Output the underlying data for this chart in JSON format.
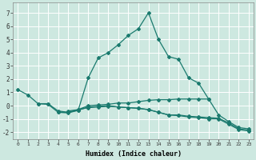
{
  "xlabel": "Humidex (Indice chaleur)",
  "background_color": "#cde8e0",
  "grid_color": "#ffffff",
  "line_color": "#1a7a6e",
  "xlim": [
    -0.5,
    23.5
  ],
  "ylim": [
    -2.5,
    7.8
  ],
  "xticks": [
    0,
    1,
    2,
    3,
    4,
    5,
    6,
    7,
    8,
    9,
    10,
    11,
    12,
    13,
    14,
    15,
    16,
    17,
    18,
    19,
    20,
    21,
    22,
    23
  ],
  "yticks": [
    -2,
    -1,
    0,
    1,
    2,
    3,
    4,
    5,
    6,
    7
  ],
  "line1_x": [
    0,
    1,
    2,
    3,
    4,
    5,
    6,
    7,
    8,
    9,
    10,
    11,
    12,
    13,
    14,
    15,
    16,
    17,
    18,
    19
  ],
  "line1_y": [
    1.2,
    0.8,
    0.15,
    0.15,
    -0.4,
    -0.5,
    -0.35,
    2.1,
    3.6,
    4.0,
    4.6,
    5.3,
    5.8,
    7.0,
    5.0,
    3.7,
    3.5,
    2.1,
    1.7,
    0.5
  ],
  "line2_x": [
    2,
    3,
    4,
    5,
    6,
    7,
    8,
    9,
    10,
    11,
    12,
    13,
    14,
    15,
    16,
    17,
    18,
    19,
    20,
    21,
    22,
    23
  ],
  "line2_y": [
    0.15,
    0.1,
    -0.5,
    -0.5,
    -0.3,
    0.0,
    0.05,
    0.1,
    0.2,
    0.2,
    0.3,
    0.4,
    0.45,
    0.45,
    0.5,
    0.5,
    0.5,
    0.5,
    -0.7,
    -1.2,
    -1.65,
    -1.75
  ],
  "line3_x": [
    4,
    5,
    6,
    7,
    8,
    9,
    10,
    11,
    12,
    13,
    14,
    15,
    16,
    17,
    18,
    19,
    20,
    21,
    22,
    23
  ],
  "line3_y": [
    -0.5,
    -0.55,
    -0.35,
    -0.1,
    -0.05,
    0.0,
    -0.1,
    -0.15,
    -0.2,
    -0.3,
    -0.5,
    -0.7,
    -0.7,
    -0.8,
    -0.85,
    -0.9,
    -0.95,
    -1.3,
    -1.75,
    -1.85
  ],
  "line4_x": [
    5,
    6,
    7,
    8,
    9,
    10,
    11,
    12,
    13,
    14,
    15,
    16,
    17,
    18,
    19,
    20,
    21,
    22,
    23
  ],
  "line4_y": [
    -0.4,
    -0.3,
    -0.15,
    -0.1,
    -0.05,
    -0.1,
    -0.15,
    -0.2,
    -0.3,
    -0.5,
    -0.7,
    -0.75,
    -0.85,
    -0.9,
    -1.0,
    -1.0,
    -1.4,
    -1.8,
    -1.9
  ]
}
